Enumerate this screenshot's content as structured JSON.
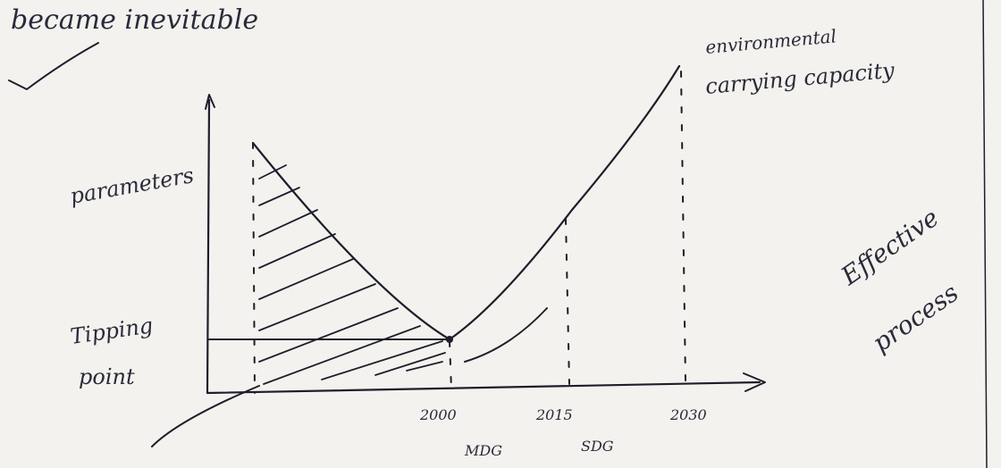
{
  "heading": "became inevitable",
  "diagram": {
    "y_label": "parameters",
    "curve_label": [
      "environmental",
      "carrying capacity"
    ],
    "point_label": [
      "Tipping",
      "point"
    ],
    "x_labels": [
      "2000",
      "2015",
      "2030"
    ],
    "goal_labels": [
      "MDG",
      "SDG"
    ]
  },
  "margin_note": [
    "Effective",
    "process"
  ]
}
